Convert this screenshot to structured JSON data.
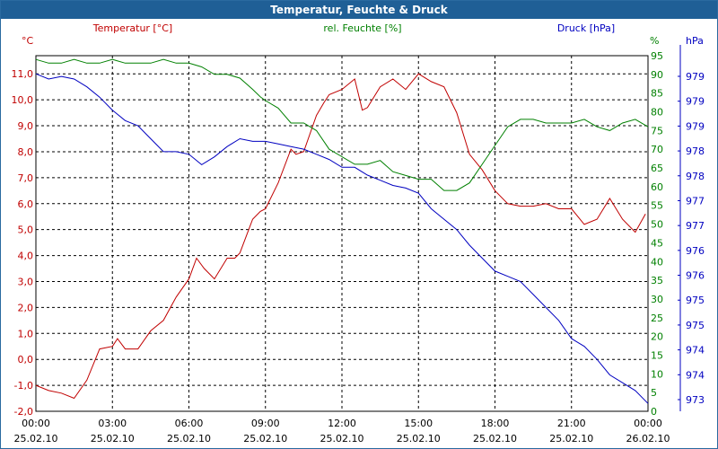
{
  "window": {
    "title": "Temperatur, Feuchte & Druck"
  },
  "chart_data": {
    "type": "line",
    "title": "Temperatur, Feuchte & Druck",
    "grid": true,
    "x": {
      "tick_times": [
        "00:00",
        "03:00",
        "06:00",
        "09:00",
        "12:00",
        "15:00",
        "18:00",
        "21:00",
        "00:00"
      ],
      "tick_dates": [
        "25.02.10",
        "25.02.10",
        "25.02.10",
        "25.02.10",
        "25.02.10",
        "25.02.10",
        "25.02.10",
        "25.02.10",
        "26.02.10"
      ],
      "range_hours": [
        0,
        24
      ]
    },
    "axes": {
      "temperature": {
        "unit_label": "°C",
        "ticks": [
          "-2,0",
          "-1,0",
          "0,0",
          "1,0",
          "2,0",
          "3,0",
          "4,0",
          "5,0",
          "6,0",
          "7,0",
          "8,0",
          "9,0",
          "10,0",
          "11,0"
        ],
        "range": [
          -2,
          11.7
        ]
      },
      "humidity": {
        "unit_label": "%",
        "ticks": [
          "0",
          "5",
          "10",
          "15",
          "20",
          "25",
          "30",
          "35",
          "40",
          "45",
          "50",
          "55",
          "60",
          "65",
          "70",
          "75",
          "80",
          "85",
          "90",
          "95"
        ],
        "range": [
          0,
          95
        ]
      },
      "pressure": {
        "unit_label": "hPa",
        "ticks": [
          "973",
          "974",
          "974",
          "975",
          "975",
          "976",
          "976",
          "977",
          "977",
          "978",
          "978",
          "979",
          "979",
          "979"
        ]
      }
    },
    "colors": {
      "temperature": "#c00000",
      "humidity": "#008000",
      "pressure": "#0000c0",
      "title_bar": "#1f5f96",
      "grid": "#000000"
    },
    "series": [
      {
        "name": "Temperatur [°C]",
        "axis": "temperature",
        "x": [
          0,
          0.5,
          1,
          1.5,
          2,
          2.5,
          3,
          3.2,
          3.5,
          4,
          4.5,
          5,
          5.5,
          6,
          6.3,
          6.6,
          7,
          7.5,
          7.8,
          8,
          8.5,
          8.8,
          9,
          9.5,
          10,
          10.2,
          10.5,
          11,
          11.3,
          11.5,
          12,
          12.5,
          12.8,
          13,
          13.5,
          14,
          14.5,
          15,
          15.5,
          16,
          16.5,
          17,
          17.5,
          18,
          18.5,
          19,
          19.5,
          20,
          20.5,
          21,
          21.5,
          22,
          22.5,
          23,
          23.5,
          23.9
        ],
        "values": [
          -1,
          -1.2,
          -1.3,
          -1.5,
          -0.8,
          0.4,
          0.5,
          0.8,
          0.4,
          0.4,
          1.1,
          1.5,
          2.4,
          3.1,
          3.9,
          3.5,
          3.1,
          3.9,
          3.9,
          4.1,
          5.4,
          5.7,
          5.8,
          6.8,
          8.1,
          7.9,
          8,
          9.4,
          9.9,
          10.2,
          10.4,
          10.8,
          9.6,
          9.7,
          10.5,
          10.8,
          10.4,
          11,
          10.7,
          10.5,
          9.5,
          7.9,
          7.3,
          6.5,
          6,
          5.9,
          5.9,
          6,
          5.8,
          5.8,
          5.2,
          5.4,
          6.2,
          5.4,
          4.9,
          5.6
        ]
      },
      {
        "name": "rel. Feuchte [%]",
        "axis": "humidity",
        "x": [
          0,
          0.5,
          1,
          1.5,
          2,
          2.5,
          3,
          3.5,
          4,
          4.5,
          5,
          5.5,
          6,
          6.5,
          7,
          7.5,
          8,
          8.5,
          8.8,
          9,
          9.5,
          10,
          10.5,
          11,
          11.5,
          12,
          12.5,
          13,
          13.5,
          14,
          14.5,
          15,
          15.5,
          16,
          16.5,
          17,
          17.5,
          18,
          18.5,
          19,
          19.5,
          20,
          20.5,
          21,
          21.5,
          22,
          22.5,
          23,
          23.5,
          24
        ],
        "values": [
          94,
          93,
          93,
          94,
          93,
          93,
          94,
          93,
          93,
          93,
          94,
          93,
          93,
          92,
          90,
          90,
          89,
          86,
          84,
          83,
          81,
          77,
          77,
          75,
          70,
          68,
          66,
          66,
          67,
          64,
          63,
          62,
          62,
          59,
          59,
          61,
          66,
          71,
          76,
          78,
          78,
          77,
          77,
          77,
          78,
          76,
          75,
          77,
          78,
          76
        ]
      },
      {
        "name": "Druck [hPa]",
        "axis": "pressure",
        "x": [
          0,
          0.5,
          1,
          1.5,
          2,
          2.5,
          3,
          3.5,
          4,
          4.5,
          5,
          5.5,
          6,
          6.5,
          7,
          7.5,
          8,
          8.5,
          9,
          9.5,
          10,
          10.5,
          11,
          11.5,
          12,
          12.5,
          13,
          13.5,
          14,
          14.5,
          15,
          15.5,
          16,
          16.5,
          17,
          17.5,
          18,
          18.5,
          19,
          19.5,
          20,
          20.5,
          21,
          21.5,
          22,
          22.5,
          23,
          23.5,
          24
        ],
        "values": [
          11,
          10.8,
          10.9,
          10.8,
          10.5,
          10.1,
          9.6,
          9.2,
          9.0,
          8.5,
          8.0,
          8.0,
          7.9,
          7.5,
          7.8,
          8.2,
          8.5,
          8.4,
          8.4,
          8.3,
          8.2,
          8.1,
          7.9,
          7.7,
          7.4,
          7.4,
          7.1,
          6.9,
          6.7,
          6.6,
          6.4,
          5.8,
          5.4,
          5.0,
          4.4,
          3.9,
          3.4,
          3.2,
          3.0,
          2.5,
          2.0,
          1.5,
          0.8,
          0.5,
          0.0,
          -0.6,
          -0.9,
          -1.2,
          -1.7
        ]
      }
    ],
    "legend": [
      {
        "label": "Temperatur [°C]",
        "placement": "top-left"
      },
      {
        "label": "rel. Feuchte [%]",
        "placement": "top-center"
      },
      {
        "label": "Druck [hPa]",
        "placement": "top-right"
      }
    ]
  }
}
